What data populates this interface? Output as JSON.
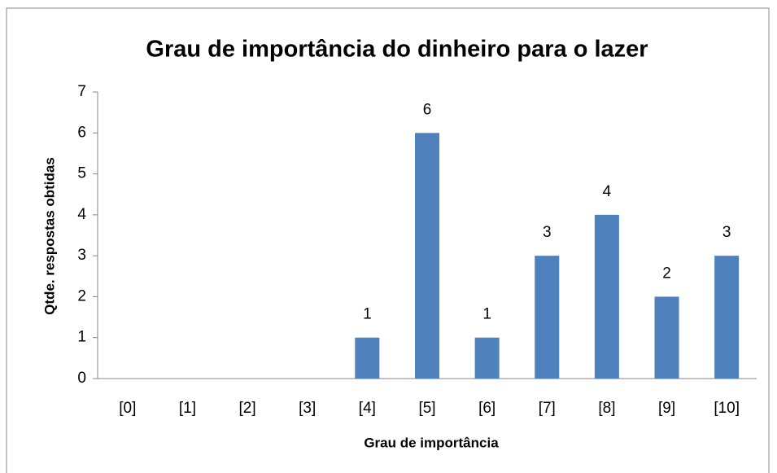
{
  "chart_data": {
    "type": "bar",
    "title": "Grau de importância do dinheiro para o lazer",
    "x_label": "Grau de importância",
    "y_label": "Qtde. respostas obtidas",
    "categories": [
      "[0]",
      "[1]",
      "[2]",
      "[3]",
      "[4]",
      "[5]",
      "[6]",
      "[7]",
      "[8]",
      "[9]",
      "[10]"
    ],
    "values": [
      0,
      0,
      0,
      0,
      1,
      6,
      1,
      3,
      4,
      2,
      3
    ],
    "color": "#4f81bd",
    "ylim": [
      0,
      7
    ],
    "yticks": [
      0,
      1,
      2,
      3,
      4,
      5,
      6,
      7
    ],
    "grid": false
  }
}
